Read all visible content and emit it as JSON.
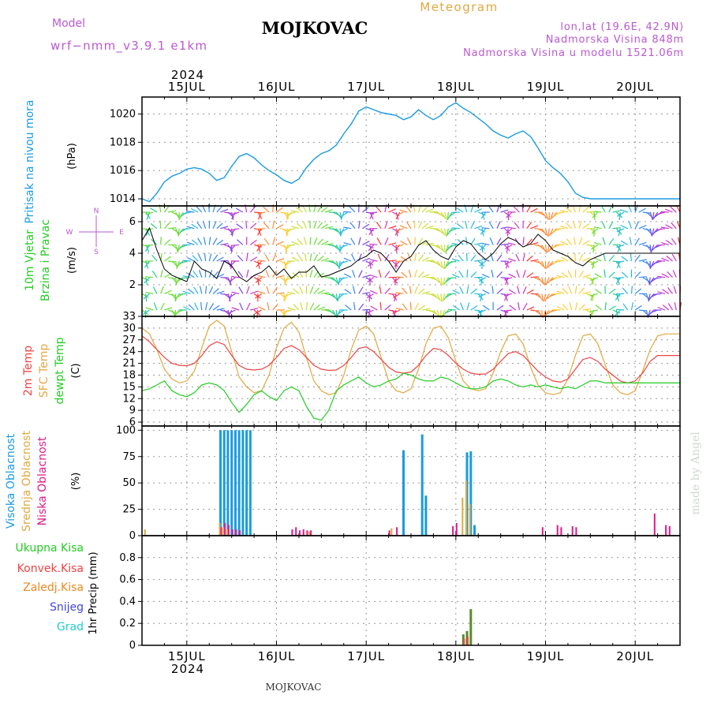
{
  "header": {
    "station": "MOJKOVAC",
    "subtitle": "Meteogram",
    "model_label": "Model",
    "model_name": "wrf−nmm_v3.9.1  e1km",
    "coords": "lon,lat (19.6E, 42.9N)",
    "altitude": "Nadmorska Visina 848m",
    "model_altitude": "Nadmorska Visina u modelu 1521.06m",
    "footer": "MOJKOVAC",
    "credit": "made by Angel",
    "year": "2024"
  },
  "colors": {
    "pressure": "#1a9be0",
    "t2m": "#ee4444",
    "tsfc": "#e0a840",
    "dewpoint": "#22cc22",
    "high_cloud": "#1a9be0",
    "mid_cloud": "#e0a840",
    "low_cloud": "#dd1a88",
    "total_precip": "#22aa22",
    "conv_precip": "#ee4444",
    "freezing": "#ee8822",
    "snow": "#4444dd",
    "hail": "#22cccc",
    "axis_title": "#ba5ad0"
  },
  "x_axis": {
    "days": [
      "15JUL",
      "16JUL",
      "17JUL",
      "18JUL",
      "19JUL",
      "20JUL"
    ],
    "range_hours": [
      0,
      144
    ]
  },
  "chart_data": [
    {
      "type": "line",
      "ylabel": "Pritisak na nivou mora",
      "unit": "(hPa)",
      "ylim": [
        1013.5,
        1021.2
      ],
      "yticks": [
        1014,
        1016,
        1018,
        1020
      ],
      "grid": true,
      "series": [
        {
          "name": "Pritisak na nivou mora",
          "x": [
            0,
            2,
            4,
            6,
            8,
            10,
            12,
            14,
            16,
            18,
            20,
            22,
            24,
            26,
            28,
            30,
            32,
            34,
            36,
            38,
            40,
            42,
            44,
            46,
            48,
            50,
            52,
            54,
            56,
            58,
            60,
            62,
            64,
            66,
            68,
            70,
            72,
            74,
            76,
            78,
            80,
            82,
            84,
            86,
            88,
            90,
            92,
            94,
            96,
            98,
            100,
            102,
            104,
            106,
            108,
            110,
            112,
            114,
            116,
            118,
            120,
            122,
            124,
            126,
            128,
            130,
            132,
            134,
            136,
            138,
            140,
            142,
            144
          ],
          "values": [
            1014.0,
            1013.8,
            1014.4,
            1015.2,
            1015.6,
            1015.8,
            1016.1,
            1016.2,
            1016.1,
            1015.8,
            1015.3,
            1015.5,
            1016.3,
            1017.0,
            1017.2,
            1016.9,
            1016.4,
            1016.0,
            1015.7,
            1015.3,
            1015.1,
            1015.4,
            1016.2,
            1016.8,
            1017.2,
            1017.4,
            1017.8,
            1018.6,
            1019.3,
            1020.2,
            1020.5,
            1020.3,
            1020.1,
            1020.0,
            1019.9,
            1019.6,
            1019.8,
            1020.3,
            1019.9,
            1019.6,
            1019.9,
            1020.5,
            1020.8,
            1020.4,
            1020.1,
            1019.7,
            1019.3,
            1018.8,
            1018.5,
            1018.3,
            1018.6,
            1018.8,
            1018.4,
            1017.6,
            1016.7,
            1016.2,
            1015.8,
            1015.2,
            1014.4,
            1014.1,
            1014.0,
            1014.0,
            1014.0,
            1014.0,
            1014.0,
            1014.0,
            1014.0,
            1014.0,
            1014.0,
            1014.0,
            1014.0,
            1014.0,
            1014.0
          ]
        }
      ]
    },
    {
      "type": "line",
      "ylabel": "10m Vjetar Brzina i Pravac",
      "unit": "(m/s)",
      "ylim": [
        0,
        7
      ],
      "yticks": [
        2,
        4,
        6
      ],
      "grid": true,
      "compass": {
        "n": "N",
        "s": "S",
        "e": "E",
        "w": "W"
      },
      "series": [
        {
          "name": "wind speed",
          "x": [
            0,
            2,
            4,
            6,
            8,
            10,
            12,
            14,
            16,
            18,
            20,
            22,
            24,
            26,
            28,
            30,
            32,
            34,
            36,
            38,
            40,
            42,
            44,
            46,
            48,
            50,
            52,
            54,
            56,
            58,
            60,
            62,
            64,
            66,
            68,
            70,
            72,
            74,
            76,
            78,
            80,
            82,
            84,
            86,
            88,
            90,
            92,
            94,
            96,
            98,
            100,
            102,
            104,
            106,
            108,
            110,
            112,
            114,
            116,
            118,
            120,
            122,
            124,
            126,
            128,
            130,
            132,
            134,
            136,
            138,
            140,
            142,
            144
          ],
          "values": [
            4.8,
            5.6,
            4.2,
            3.0,
            2.6,
            2.4,
            2.2,
            3.5,
            3.0,
            2.8,
            2.4,
            3.5,
            3.2,
            2.5,
            2.2,
            2.6,
            2.8,
            3.2,
            2.6,
            3.0,
            2.4,
            2.8,
            2.8,
            3.2,
            2.5,
            2.6,
            2.8,
            3.0,
            3.2,
            3.6,
            3.8,
            4.2,
            4.0,
            3.5,
            2.8,
            3.5,
            3.8,
            4.5,
            4.8,
            4.2,
            3.8,
            3.6,
            4.4,
            4.8,
            4.6,
            4.0,
            3.6,
            4.0,
            4.6,
            5.0,
            4.8,
            4.4,
            4.6,
            5.2,
            4.8,
            4.2,
            4.0,
            3.8,
            3.4,
            3.2,
            3.6,
            3.8,
            4.0,
            4.0,
            4.0,
            4.0,
            4.0,
            4.0,
            4.0,
            4.0,
            4.0,
            4.0,
            4.0
          ]
        }
      ]
    },
    {
      "type": "line",
      "ylabel": "2m Temp / SFC Temp / dewpt Temp",
      "unit": "(C)",
      "ylim": [
        5,
        33
      ],
      "yticks": [
        6,
        9,
        12,
        15,
        18,
        21,
        24,
        27,
        30,
        33
      ],
      "grid": true,
      "series": [
        {
          "name": "2m Temp",
          "x": [
            0,
            2,
            4,
            6,
            8,
            10,
            12,
            14,
            16,
            18,
            20,
            22,
            24,
            26,
            28,
            30,
            32,
            34,
            36,
            38,
            40,
            42,
            44,
            46,
            48,
            50,
            52,
            54,
            56,
            58,
            60,
            62,
            64,
            66,
            68,
            70,
            72,
            74,
            76,
            78,
            80,
            82,
            84,
            86,
            88,
            90,
            92,
            94,
            96,
            98,
            100,
            102,
            104,
            106,
            108,
            110,
            112,
            114,
            116,
            118,
            120,
            122,
            124,
            126,
            128,
            130,
            132,
            134,
            136,
            138,
            140,
            142,
            144
          ],
          "values": [
            28.0,
            26.5,
            24.5,
            22.5,
            21.0,
            20.5,
            20.4,
            21.0,
            23.0,
            25.5,
            26.5,
            25.8,
            23.0,
            20.5,
            19.5,
            19.3,
            19.5,
            20.5,
            22.5,
            24.8,
            25.5,
            24.5,
            22.5,
            20.5,
            19.5,
            19.2,
            19.3,
            20.5,
            22.5,
            24.8,
            25.2,
            24.0,
            22.0,
            20.0,
            18.8,
            18.5,
            18.8,
            20.5,
            23.0,
            24.8,
            24.5,
            23.0,
            21.0,
            19.5,
            18.5,
            18.2,
            18.3,
            19.5,
            21.5,
            23.5,
            24.0,
            23.0,
            21.0,
            19.0,
            17.5,
            16.5,
            16.2,
            17.0,
            19.5,
            22.0,
            22.5,
            21.5,
            19.5,
            18.0,
            16.5,
            16.0,
            16.5,
            18.5,
            21.5,
            23.0,
            23.0,
            23.0,
            23.0
          ]
        },
        {
          "name": "SFC Temp",
          "x": [
            0,
            2,
            4,
            6,
            8,
            10,
            12,
            14,
            16,
            18,
            20,
            22,
            24,
            26,
            28,
            30,
            32,
            34,
            36,
            38,
            40,
            42,
            44,
            46,
            48,
            50,
            52,
            54,
            56,
            58,
            60,
            62,
            64,
            66,
            68,
            70,
            72,
            74,
            76,
            78,
            80,
            82,
            84,
            86,
            88,
            90,
            92,
            94,
            96,
            98,
            100,
            102,
            104,
            106,
            108,
            110,
            112,
            114,
            116,
            118,
            120,
            122,
            124,
            126,
            128,
            130,
            132,
            134,
            136,
            138,
            140,
            142,
            144
          ],
          "values": [
            30.0,
            28.5,
            24.5,
            19.5,
            17.0,
            16.0,
            16.5,
            19.0,
            25.0,
            30.5,
            32.0,
            30.5,
            24.0,
            17.5,
            15.0,
            13.5,
            14.0,
            18.0,
            25.0,
            30.0,
            31.5,
            29.0,
            22.5,
            16.5,
            14.0,
            13.0,
            13.5,
            18.0,
            24.5,
            29.5,
            30.5,
            28.5,
            22.5,
            16.5,
            14.0,
            13.5,
            14.5,
            19.5,
            26.0,
            30.0,
            30.5,
            27.5,
            21.5,
            16.5,
            14.5,
            14.0,
            14.5,
            18.5,
            24.0,
            28.0,
            28.5,
            26.0,
            20.0,
            15.5,
            13.5,
            13.0,
            13.5,
            17.0,
            23.0,
            28.0,
            28.5,
            26.0,
            20.5,
            15.5,
            13.5,
            13.0,
            14.0,
            19.0,
            24.5,
            28.0,
            28.5,
            28.5,
            28.5
          ]
        },
        {
          "name": "dewpt Temp",
          "x": [
            0,
            2,
            4,
            6,
            8,
            10,
            12,
            14,
            16,
            18,
            20,
            22,
            24,
            26,
            28,
            30,
            32,
            34,
            36,
            38,
            40,
            42,
            44,
            46,
            48,
            50,
            52,
            54,
            56,
            58,
            60,
            62,
            64,
            66,
            68,
            70,
            72,
            74,
            76,
            78,
            80,
            82,
            84,
            86,
            88,
            90,
            92,
            94,
            96,
            98,
            100,
            102,
            104,
            106,
            108,
            110,
            112,
            114,
            116,
            118,
            120,
            122,
            124,
            126,
            128,
            130,
            132,
            134,
            136,
            138,
            140,
            142,
            144
          ],
          "values": [
            14.0,
            14.5,
            15.5,
            16.5,
            14.0,
            13.0,
            12.5,
            13.5,
            15.5,
            16.0,
            15.5,
            14.0,
            11.0,
            8.5,
            10.5,
            13.0,
            14.0,
            12.5,
            11.5,
            14.0,
            15.0,
            14.0,
            10.0,
            7.0,
            6.5,
            9.0,
            14.0,
            15.5,
            16.5,
            17.5,
            16.0,
            15.0,
            15.5,
            16.5,
            17.0,
            18.5,
            18.0,
            17.0,
            16.5,
            16.5,
            17.5,
            17.0,
            16.0,
            15.0,
            14.5,
            14.5,
            15.0,
            16.5,
            17.0,
            16.5,
            15.5,
            15.0,
            15.5,
            15.0,
            15.5,
            15.0,
            14.5,
            15.0,
            14.5,
            15.5,
            16.5,
            16.5,
            16.0,
            16.0,
            16.0,
            16.0,
            16.0,
            16.0,
            16.0,
            16.0,
            16.0,
            16.0,
            16.0
          ]
        }
      ]
    },
    {
      "type": "bar",
      "ylabel": "Visoka Oblacnost / Srednja Oblacnost / Niska Oblacnost",
      "unit": "(%)",
      "ylim": [
        0,
        104
      ],
      "yticks": [
        0,
        25,
        50,
        75,
        100
      ],
      "grid": true,
      "series": [
        {
          "name": "Visoka Oblacnost",
          "x": [
            21,
            22,
            23,
            24,
            25,
            26,
            27,
            28,
            29,
            70,
            75,
            76,
            87,
            88,
            89
          ],
          "values": [
            100,
            100,
            100,
            100,
            100,
            100,
            100,
            100,
            100,
            81,
            96,
            38,
            79,
            80,
            10
          ]
        },
        {
          "name": "Srednja Oblacnost",
          "x": [
            1,
            21,
            22,
            23,
            45,
            67,
            86,
            87,
            88
          ],
          "values": [
            6,
            12,
            8,
            6,
            4,
            7,
            36,
            52,
            30
          ]
        },
        {
          "name": "Niska Oblacnost",
          "x": [
            21,
            22,
            23,
            24,
            25,
            26,
            40,
            41,
            42,
            43,
            44,
            45,
            66,
            68,
            83,
            84,
            107,
            111,
            112,
            115,
            116,
            137,
            140,
            141
          ],
          "values": [
            8,
            12,
            10,
            6,
            6,
            5,
            6,
            8,
            5,
            6,
            5,
            5,
            5,
            8,
            9,
            12,
            8,
            10,
            8,
            9,
            8,
            21,
            10,
            9
          ]
        }
      ]
    },
    {
      "type": "bar",
      "ylabel": "1hr Precip",
      "unit": "(mm)",
      "ylim": [
        0,
        1.0
      ],
      "yticks": [
        0,
        0.2,
        0.4,
        0.6,
        0.8
      ],
      "grid": true,
      "legend": [
        "Ukupna Kisa",
        "Konvek.Kisa",
        "Zaledj.Kisa",
        "Snijeg",
        "Grad"
      ],
      "series": [
        {
          "name": "Ukupna Kisa",
          "x": [
            86,
            87,
            88
          ],
          "values": [
            0.1,
            0.13,
            0.33
          ]
        },
        {
          "name": "Konvek.Kisa",
          "x": [
            86,
            87
          ],
          "values": [
            0.06,
            0.08
          ]
        }
      ]
    }
  ]
}
